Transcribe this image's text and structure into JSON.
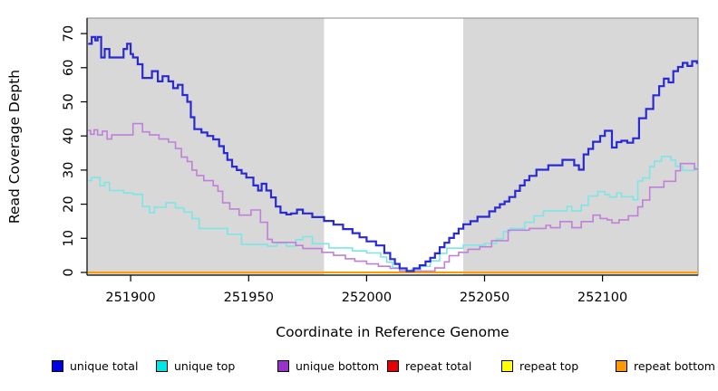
{
  "chart_data": {
    "type": "line",
    "step": true,
    "title": "",
    "xlabel": "Coordinate in Reference Genome",
    "ylabel": "Read Coverage Depth",
    "xlim": [
      251881.5,
      252140.5
    ],
    "ylim": [
      0,
      70
    ],
    "x_ticks": [
      251900,
      251950,
      252000,
      252050,
      252100
    ],
    "y_ticks": [
      0,
      10,
      20,
      30,
      40,
      50,
      60,
      70
    ],
    "grid": false,
    "background": "#d8d8d8",
    "highlight_region": {
      "x_start": 251982,
      "x_end": 252041,
      "color": "#ffffff"
    },
    "legend_position": "bottom",
    "series": [
      {
        "name": "repeat total",
        "color": "#e60000",
        "legend_color": "#e60000",
        "line_width": 2,
        "points": [
          [
            251882,
            0
          ]
        ]
      },
      {
        "name": "repeat top",
        "color": "#ffff00",
        "legend_color": "#ffff00",
        "line_width": 2,
        "points": [
          [
            251882,
            0
          ]
        ]
      },
      {
        "name": "repeat bottom",
        "color": "#ff9d00",
        "legend_color": "#ff9900",
        "line_width": 2,
        "points": [
          [
            251882,
            0
          ]
        ]
      },
      {
        "name": "unique top",
        "color": "#7ce6e6",
        "legend_color": "#00e5e5",
        "line_width": 1.6,
        "points": [
          [
            251882,
            26.9
          ],
          [
            251883.5,
            27.8
          ],
          [
            251887,
            25.4
          ],
          [
            251889,
            26.4
          ],
          [
            251891,
            24
          ],
          [
            251897,
            23.3
          ],
          [
            251901,
            22.9
          ],
          [
            251905,
            19.3
          ],
          [
            251908,
            17.5
          ],
          [
            251910,
            19.1
          ],
          [
            251915,
            20.4
          ],
          [
            251919,
            18.9
          ],
          [
            251922.5,
            17.7
          ],
          [
            251926,
            15.8
          ],
          [
            251929,
            12.9
          ],
          [
            251941,
            11.2
          ],
          [
            251947,
            8.2
          ],
          [
            251958,
            7.7
          ],
          [
            251962,
            8.6
          ],
          [
            251966,
            7.7
          ],
          [
            251970,
            9.6
          ],
          [
            251973,
            10.5
          ],
          [
            251977,
            8.4
          ],
          [
            251984,
            7.2
          ],
          [
            251994,
            6.3
          ],
          [
            252000,
            5.7
          ],
          [
            252006,
            4.5
          ],
          [
            252008.5,
            3
          ],
          [
            252011,
            1.4
          ],
          [
            252014,
            0.5
          ],
          [
            252019,
            0.9
          ],
          [
            252023,
            1.8
          ],
          [
            252027,
            3.4
          ],
          [
            252031,
            5.6
          ],
          [
            252034,
            7.1
          ],
          [
            252041,
            8
          ],
          [
            252050,
            8.5
          ],
          [
            252055,
            9.8
          ],
          [
            252058,
            12
          ],
          [
            252061,
            12.9
          ],
          [
            252067,
            14.7
          ],
          [
            252071,
            16.6
          ],
          [
            252075,
            18
          ],
          [
            252085,
            19.3
          ],
          [
            252087,
            18
          ],
          [
            252091,
            19.7
          ],
          [
            252094,
            22.4
          ],
          [
            252098,
            23.7
          ],
          [
            252101,
            22.8
          ],
          [
            252103,
            22.1
          ],
          [
            252106,
            23.3
          ],
          [
            252108,
            22.2
          ],
          [
            252113,
            21.3
          ],
          [
            252115,
            26.8
          ],
          [
            252117,
            27.7
          ],
          [
            252120,
            31
          ],
          [
            252122,
            32.6
          ],
          [
            252125,
            34
          ],
          [
            252129,
            32.9
          ],
          [
            252131,
            31.1
          ],
          [
            252134,
            29.9
          ],
          [
            252139,
            30.6
          ]
        ]
      },
      {
        "name": "unique bottom",
        "color": "#bf80d8",
        "legend_color": "#9932cc",
        "line_width": 1.6,
        "points": [
          [
            251882,
            41.6
          ],
          [
            251883,
            40.5
          ],
          [
            251884.5,
            41.8
          ],
          [
            251886,
            40.3
          ],
          [
            251888,
            41.4
          ],
          [
            251890,
            39.1
          ],
          [
            251892,
            40.3
          ],
          [
            251901,
            43.6
          ],
          [
            251905,
            41.2
          ],
          [
            251908,
            40.3
          ],
          [
            251912,
            39.1
          ],
          [
            251916,
            38.2
          ],
          [
            251919,
            36.3
          ],
          [
            251921.5,
            33.8
          ],
          [
            251924,
            32.5
          ],
          [
            251926,
            30
          ],
          [
            251928,
            28.4
          ],
          [
            251931,
            26.9
          ],
          [
            251935,
            25.4
          ],
          [
            251937,
            23.8
          ],
          [
            251939,
            20.4
          ],
          [
            251942,
            18.6
          ],
          [
            251946,
            16.8
          ],
          [
            251951,
            18.3
          ],
          [
            251955,
            14.7
          ],
          [
            251958,
            9.7
          ],
          [
            251960,
            8.8
          ],
          [
            251970,
            7.9
          ],
          [
            251973,
            7
          ],
          [
            251981,
            5.9
          ],
          [
            251986,
            5
          ],
          [
            251991,
            4
          ],
          [
            251995,
            3.3
          ],
          [
            252000,
            2.5
          ],
          [
            252005,
            1.8
          ],
          [
            252010,
            1.2
          ],
          [
            252014,
            0.4
          ],
          [
            252029,
            1.3
          ],
          [
            252033,
            3.1
          ],
          [
            252035,
            4.9
          ],
          [
            252039,
            5.9
          ],
          [
            252043,
            6.8
          ],
          [
            252048,
            7.5
          ],
          [
            252053,
            9.3
          ],
          [
            252060,
            12.4
          ],
          [
            252069,
            12.9
          ],
          [
            252076,
            13.8
          ],
          [
            252078,
            13.1
          ],
          [
            252082,
            14.9
          ],
          [
            252087,
            13.1
          ],
          [
            252091,
            14.9
          ],
          [
            252096,
            16.8
          ],
          [
            252099,
            15.8
          ],
          [
            252102,
            15.4
          ],
          [
            252104,
            14.5
          ],
          [
            252107,
            15.4
          ],
          [
            252111,
            16.6
          ],
          [
            252115,
            19.2
          ],
          [
            252117,
            21.2
          ],
          [
            252120,
            25
          ],
          [
            252126,
            26.7
          ],
          [
            252131,
            29.8
          ],
          [
            252133,
            31.9
          ],
          [
            252139,
            30.3
          ]
        ]
      },
      {
        "name": "unique total",
        "color": "#2a2ad4",
        "legend_color": "#0000e6",
        "line_width": 2.2,
        "points": [
          [
            251882,
            67
          ],
          [
            251883.5,
            69
          ],
          [
            251885,
            68
          ],
          [
            251886,
            69
          ],
          [
            251887.5,
            63
          ],
          [
            251889,
            65.5
          ],
          [
            251891,
            63
          ],
          [
            251897,
            65.5
          ],
          [
            251898.5,
            67
          ],
          [
            251900,
            64
          ],
          [
            251901,
            63
          ],
          [
            251903,
            61
          ],
          [
            251905,
            57
          ],
          [
            251909,
            59
          ],
          [
            251911.5,
            56
          ],
          [
            251913.5,
            57.5
          ],
          [
            251916,
            56
          ],
          [
            251918,
            54
          ],
          [
            251920,
            55
          ],
          [
            251922,
            52
          ],
          [
            251924,
            50
          ],
          [
            251925.5,
            45.5
          ],
          [
            251927,
            42
          ],
          [
            251930,
            41
          ],
          [
            251932.5,
            40
          ],
          [
            251935,
            39
          ],
          [
            251937.5,
            37
          ],
          [
            251939.5,
            35
          ],
          [
            251941,
            33
          ],
          [
            251943,
            31
          ],
          [
            251945,
            30
          ],
          [
            251947,
            29
          ],
          [
            251949,
            27.8
          ],
          [
            251952,
            25.5
          ],
          [
            251954,
            24
          ],
          [
            251955.5,
            26
          ],
          [
            251957.5,
            24
          ],
          [
            251959.5,
            22
          ],
          [
            251961.5,
            19.3
          ],
          [
            251963.5,
            17.5
          ],
          [
            251966,
            17
          ],
          [
            251968,
            17.3
          ],
          [
            251970.5,
            18.4
          ],
          [
            251973,
            17.3
          ],
          [
            251977,
            16.2
          ],
          [
            251982,
            15.1
          ],
          [
            251986,
            14
          ],
          [
            251990,
            12.7
          ],
          [
            251994,
            11.5
          ],
          [
            251997,
            10.3
          ],
          [
            252000,
            9.1
          ],
          [
            252004,
            7.9
          ],
          [
            252007.5,
            5.7
          ],
          [
            252010,
            3.9
          ],
          [
            252012,
            2.5
          ],
          [
            252014,
            1.2
          ],
          [
            252017,
            0.4
          ],
          [
            252020,
            1.2
          ],
          [
            252022.5,
            2.1
          ],
          [
            252025,
            3.2
          ],
          [
            252027,
            4.3
          ],
          [
            252029,
            5.6
          ],
          [
            252031,
            7.4
          ],
          [
            252033,
            8.7
          ],
          [
            252035,
            10.1
          ],
          [
            252037,
            11.4
          ],
          [
            252039,
            12.8
          ],
          [
            252041,
            14.1
          ],
          [
            252044,
            15
          ],
          [
            252047,
            16.3
          ],
          [
            252052,
            17.9
          ],
          [
            252054.5,
            19
          ],
          [
            252056.5,
            20
          ],
          [
            252058.5,
            20.8
          ],
          [
            252060.5,
            22.1
          ],
          [
            252063,
            23.9
          ],
          [
            252065,
            25.5
          ],
          [
            252067,
            27
          ],
          [
            252069,
            28.3
          ],
          [
            252072,
            30.1
          ],
          [
            252077,
            31.4
          ],
          [
            252083,
            33
          ],
          [
            252088,
            31.4
          ],
          [
            252090,
            30.1
          ],
          [
            252092,
            34.6
          ],
          [
            252094,
            36.2
          ],
          [
            252096,
            38.3
          ],
          [
            252099,
            40
          ],
          [
            252101,
            41.5
          ],
          [
            252104,
            36.6
          ],
          [
            252106,
            38.2
          ],
          [
            252108,
            38.6
          ],
          [
            252110.5,
            38
          ],
          [
            252113,
            39.3
          ],
          [
            252115.5,
            45.2
          ],
          [
            252118.5,
            47.9
          ],
          [
            252121.5,
            51.9
          ],
          [
            252124,
            54.6
          ],
          [
            252126,
            56.8
          ],
          [
            252128,
            55.7
          ],
          [
            252130,
            59
          ],
          [
            252132,
            60.2
          ],
          [
            252134,
            61.4
          ],
          [
            252136,
            60.5
          ],
          [
            252138,
            61.9
          ],
          [
            252140,
            61.4
          ]
        ]
      }
    ],
    "legend_order": [
      "unique total",
      "unique top",
      "unique bottom",
      "repeat total",
      "repeat top",
      "repeat bottom"
    ]
  }
}
